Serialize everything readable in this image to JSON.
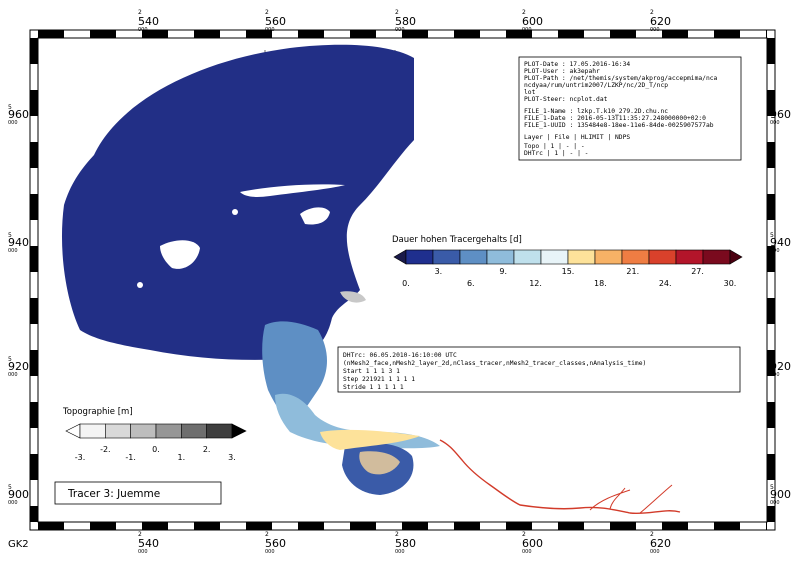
{
  "map": {
    "projection_label": "GK2",
    "x_ticks": [
      {
        "prefix": "2",
        "main": "540",
        "suffix": "000"
      },
      {
        "prefix": "2",
        "main": "560",
        "suffix": "000"
      },
      {
        "prefix": "2",
        "main": "580",
        "suffix": "000"
      },
      {
        "prefix": "2",
        "main": "600",
        "suffix": "000"
      },
      {
        "prefix": "2",
        "main": "620",
        "suffix": "000"
      }
    ],
    "y_ticks": [
      {
        "prefix": "5",
        "main": "960",
        "suffix": "000"
      },
      {
        "prefix": "5",
        "main": "940",
        "suffix": "000"
      },
      {
        "prefix": "5",
        "main": "920",
        "suffix": "000"
      },
      {
        "prefix": "5",
        "main": "900",
        "suffix": "000"
      }
    ]
  },
  "info_box": {
    "lines": [
      "PLOT-Date : 17.05.2016-16:34",
      "PLOT-User : ak3epahr",
      "PLOT-Path : /net/themis/system/akprog/accepmima/nca",
      "            ncdyaa/rum/untrim2007/LZKP/nc/2D_T/ncp",
      "            lot",
      "PLOT-Steer: ncplot.dat"
    ],
    "file_lines": [
      "FILE_1-Name : lzkp.T.k10_279.2D.chu.nc",
      "FILE_1-Date : 2016-05-13T11:35:27.248000000+02:0",
      "FILE_1-UUID : 135484e8-18ee-11e6-84de-0025907577ab"
    ],
    "table_header": "Layer | File | HLIMIT | NDPS",
    "table_rows": [
      "Topo   |   1  |   -    |  -",
      "DHTrc  |   1  |   -    |  -"
    ]
  },
  "tracer_legend": {
    "title": "Dauer hohen Tracergehalts [d]",
    "colors": [
      "#1f2f8e",
      "#3a5ba8",
      "#5e8fc4",
      "#8fbcdb",
      "#bfe0ec",
      "#e8f4f8",
      "#fde29a",
      "#f7b266",
      "#ef7d43",
      "#d9412b",
      "#b3152a",
      "#7a0a1e"
    ],
    "end_left": "#1a1a4a",
    "end_right": "#4a0010",
    "labels_top": [
      "3.",
      "9.",
      "15.",
      "21.",
      "27."
    ],
    "labels_bottom": [
      "0.",
      "6.",
      "12.",
      "18.",
      "24.",
      "30."
    ]
  },
  "topo_legend": {
    "title": "Topographie [m]",
    "colors": [
      "#f4f4f4",
      "#d9d9d9",
      "#bdbdbd",
      "#969696",
      "#6e6e6e",
      "#3e3e3e"
    ],
    "end_left": "#ffffff",
    "end_right": "#000000",
    "labels_top": [
      "-2.",
      "0.",
      "2."
    ],
    "labels_bottom": [
      "-3.",
      "-1.",
      "1.",
      "3."
    ]
  },
  "data_box": {
    "lines": [
      "DHTrc: 06.05.2010-16:10:00 UTC",
      "(nMesh2_face,nMesh2_layer_2d,nClass_tracer,nMesh2_tracer_classes,nAnalysis_time)",
      "Start       1        1        1        3        1",
      "Step   221921        1        1        1        1",
      "Stride      1        1        1        1        1"
    ]
  },
  "title_box": {
    "text": "Tracer 3: Juemme"
  },
  "colors": {
    "sea": "#222f86",
    "river": "#d23b2a",
    "frame": "#000000",
    "land_grey": "#c8c8c8"
  }
}
